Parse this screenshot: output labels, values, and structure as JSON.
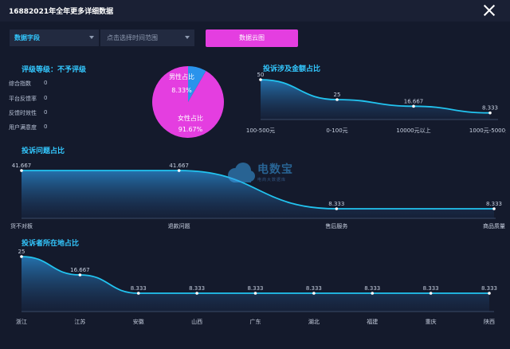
{
  "window": {
    "title": "16882021年全年更多详细数据"
  },
  "filters": {
    "field_label": "数据字段",
    "date_placeholder": "点击选择时间范围",
    "cloud_button": "数据云图"
  },
  "rating": {
    "title": "评级等级：不予评级",
    "stats": [
      {
        "label": "综合指数",
        "value": "0"
      },
      {
        "label": "平台反馈率",
        "value": "0"
      },
      {
        "label": "反馈时效性",
        "value": "0"
      },
      {
        "label": "用户满意度",
        "value": "0"
      }
    ]
  },
  "logo": {
    "main": "电数宝",
    "sub": "电商大数据库"
  },
  "chart_data": [
    {
      "type": "pie",
      "categories": [
        "男性占比",
        "女性占比"
      ],
      "values": [
        8.33,
        91.67
      ],
      "labels": [
        "8.33%",
        "91.67%"
      ],
      "colors": [
        "#2a93ec",
        "#e43ee0"
      ]
    },
    {
      "type": "area",
      "title": "投诉涉及金额占比",
      "categories": [
        "100-500元",
        "0-100元",
        "10000元以上",
        "1000元-5000元"
      ],
      "values": [
        50,
        25,
        16.667,
        8.333
      ],
      "labels": [
        "50",
        "25",
        "16.667",
        "8.333"
      ],
      "ylim": [
        0,
        50
      ]
    },
    {
      "type": "area",
      "title": "投诉问题占比",
      "categories": [
        "货不对板",
        "退款问题",
        "售后服务",
        "商品质量"
      ],
      "values": [
        41.667,
        41.667,
        8.333,
        8.333
      ],
      "labels": [
        "41.667",
        "41.667",
        "8.333",
        "8.333"
      ],
      "ylim": [
        0,
        50
      ]
    },
    {
      "type": "area",
      "title": "投诉者所在地占比",
      "categories": [
        "浙江",
        "江苏",
        "安徽",
        "山西",
        "广东",
        "湖北",
        "福建",
        "重庆",
        "陕西"
      ],
      "values": [
        25,
        16.667,
        8.333,
        8.333,
        8.333,
        8.333,
        8.333,
        8.333,
        8.333
      ],
      "labels": [
        "25",
        "16.667",
        "8.333",
        "8.333",
        "8.333",
        "8.333",
        "8.333",
        "8.333",
        "8.333"
      ],
      "ylim": [
        0,
        25
      ]
    }
  ]
}
